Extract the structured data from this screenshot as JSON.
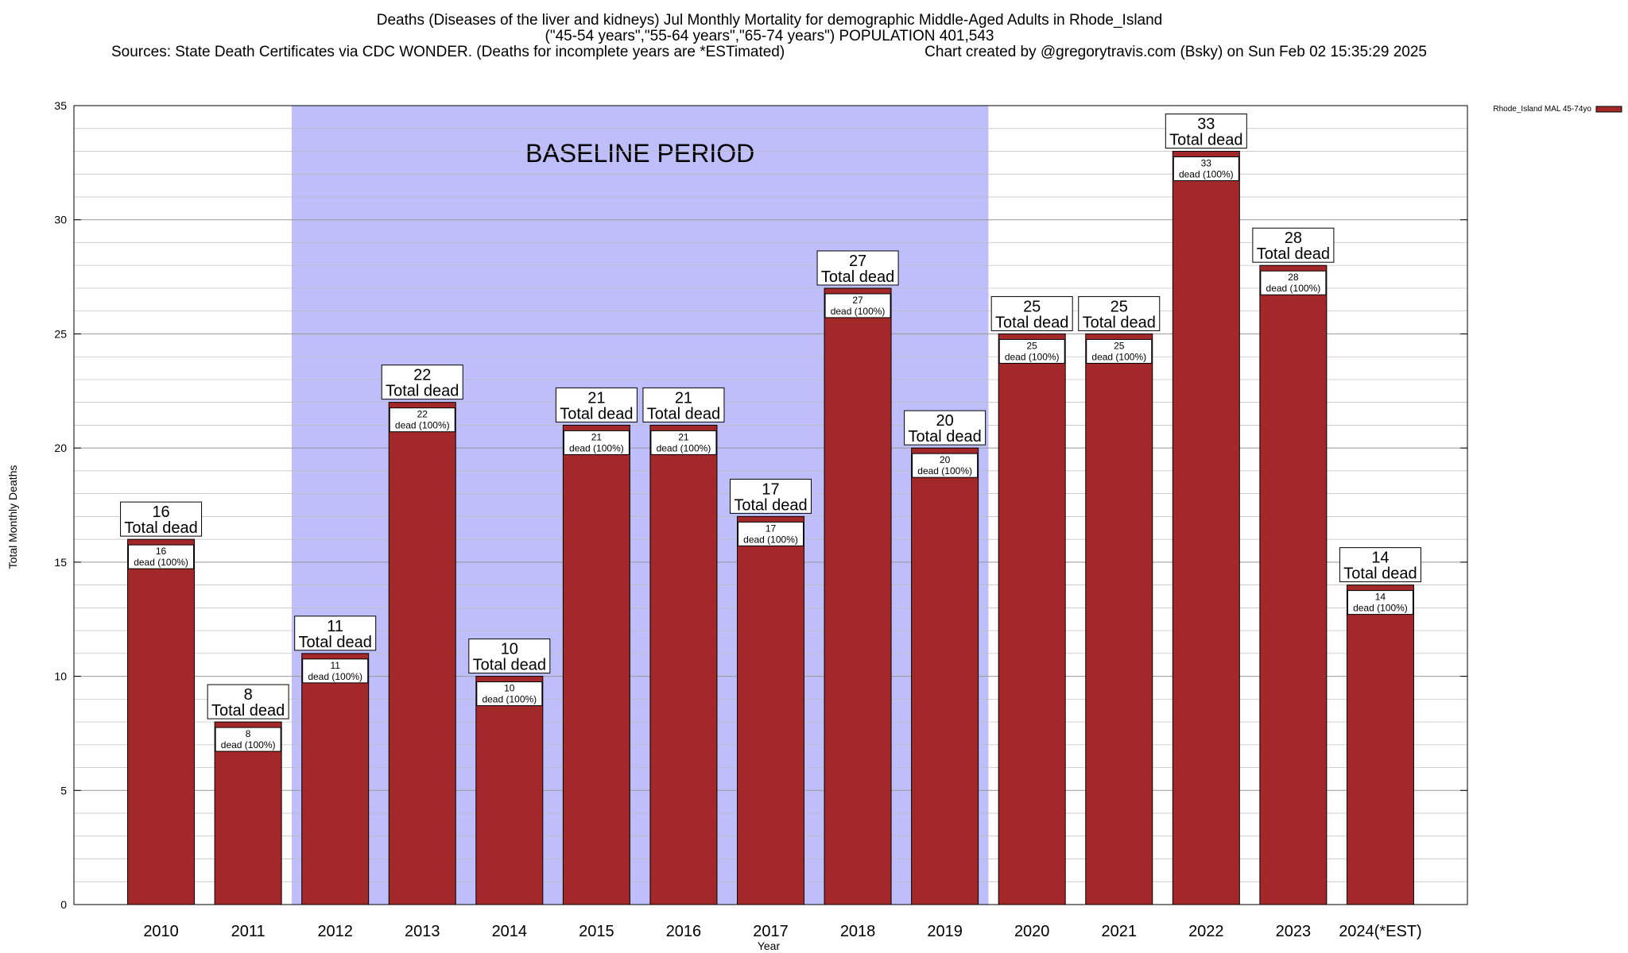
{
  "chart_data": {
    "type": "bar",
    "title_lines": [
      "Deaths (Diseases of the liver and kidneys) Jul Monthly Mortality for demographic Middle-Aged Adults in Rhode_Island",
      "(\"45-54 years\",\"55-64 years\",\"65-74 years\") POPULATION 401,543"
    ],
    "source_text": "Sources: State Death Certificates via CDC WONDER. (Deaths for incomplete years are *ESTimated)",
    "credit_text": "Chart created by @gregorytravis.com (Bsky) on Sun Feb 02 15:35:29 2025",
    "xlabel": "Year",
    "ylabel": "Total Monthly Deaths",
    "ylim": [
      0,
      35
    ],
    "y_major_ticks": [
      0,
      5,
      10,
      15,
      20,
      25,
      30,
      35
    ],
    "y_minor_step": 1,
    "grid": true,
    "legend_position": "top-right",
    "categories": [
      "2010",
      "2011",
      "2012",
      "2013",
      "2014",
      "2015",
      "2016",
      "2017",
      "2018",
      "2019",
      "2020",
      "2021",
      "2022",
      "2023",
      "2024(*EST)"
    ],
    "series": [
      {
        "name": "Rhode_Island MAL 45-74yo",
        "color": "#a3282a",
        "values": [
          16,
          8,
          11,
          22,
          10,
          21,
          21,
          17,
          27,
          20,
          25,
          25,
          33,
          28,
          14
        ]
      }
    ],
    "total_label_suffix": "Total dead",
    "inner_label_suffix": "dead (100%)",
    "baseline": {
      "label": "BASELINE PERIOD",
      "start_category": "2012",
      "end_category": "2019",
      "color": "#bebefb"
    }
  }
}
